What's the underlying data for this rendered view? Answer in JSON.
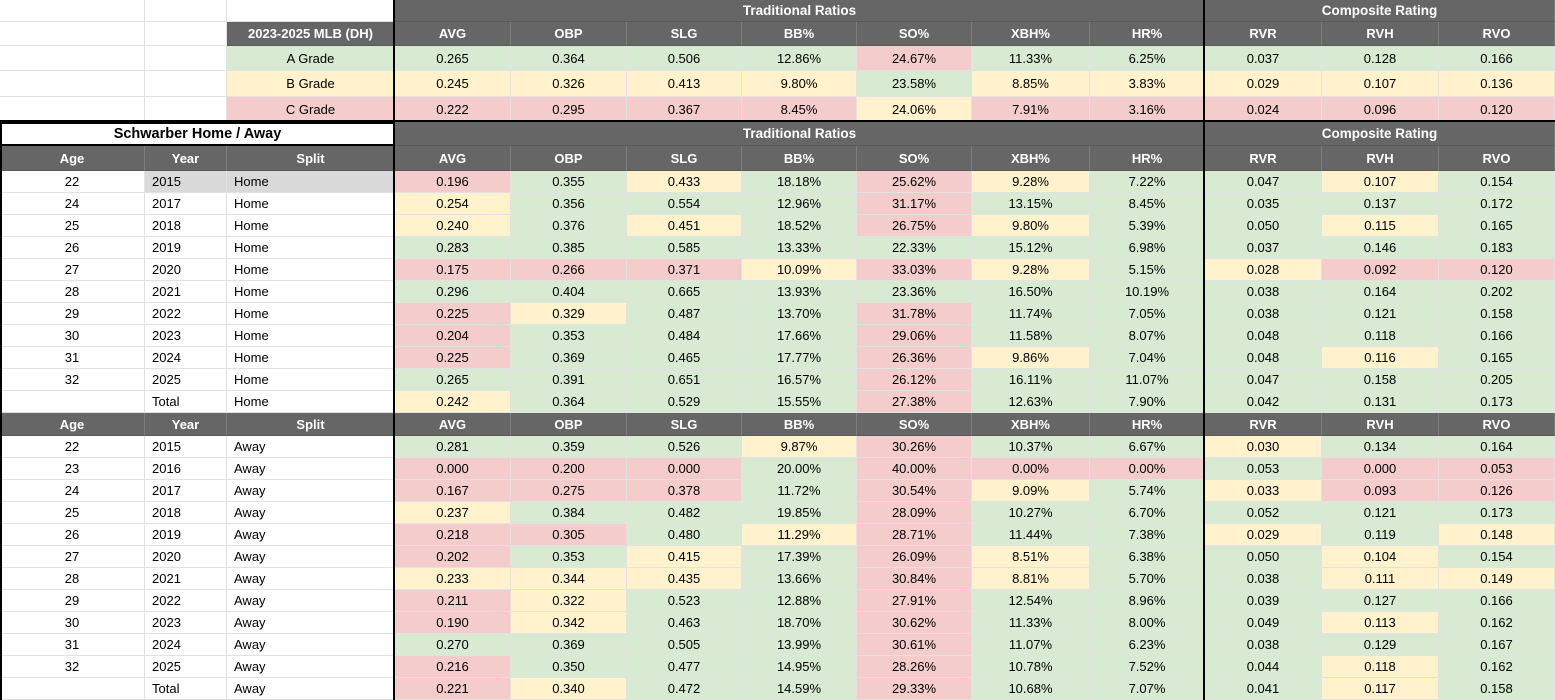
{
  "palette": {
    "G": "#d9ead3",
    "Y": "#fff2cc",
    "R": "#f4cccc",
    "S": "#d9d9d9",
    "header": "#666666"
  },
  "group_headers": {
    "traditional": "Traditional Ratios",
    "composite": "Composite Rating"
  },
  "stat_headers": [
    "AVG",
    "OBP",
    "SLG",
    "BB%",
    "SO%",
    "XBH%",
    "HR%",
    "RVR",
    "RVH",
    "RVO"
  ],
  "split_headers": [
    "Age",
    "Year",
    "Split"
  ],
  "top_table": {
    "label_header": "2023-2025 MLB (DH)",
    "rows": [
      {
        "label": "A Grade",
        "label_color": "G",
        "values": [
          "0.265",
          "0.364",
          "0.506",
          "12.86%",
          "24.67%",
          "11.33%",
          "6.25%",
          "0.037",
          "0.128",
          "0.166"
        ],
        "colors": [
          "G",
          "G",
          "G",
          "G",
          "R",
          "G",
          "G",
          "G",
          "G",
          "G"
        ]
      },
      {
        "label": "B Grade",
        "label_color": "Y",
        "values": [
          "0.245",
          "0.326",
          "0.413",
          "9.80%",
          "23.58%",
          "8.85%",
          "3.83%",
          "0.029",
          "0.107",
          "0.136"
        ],
        "colors": [
          "Y",
          "Y",
          "Y",
          "Y",
          "G",
          "Y",
          "Y",
          "Y",
          "Y",
          "Y"
        ]
      },
      {
        "label": "C Grade",
        "label_color": "R",
        "values": [
          "0.222",
          "0.295",
          "0.367",
          "8.45%",
          "24.06%",
          "7.91%",
          "3.16%",
          "0.024",
          "0.096",
          "0.120"
        ],
        "colors": [
          "R",
          "R",
          "R",
          "R",
          "Y",
          "R",
          "R",
          "R",
          "R",
          "R"
        ]
      }
    ]
  },
  "splits_table": {
    "title": "Schwarber Home / Away",
    "home_rows": [
      {
        "age": "22",
        "year": "2015",
        "split": "Home",
        "highlight": true,
        "values": [
          "0.196",
          "0.355",
          "0.433",
          "18.18%",
          "25.62%",
          "9.28%",
          "7.22%",
          "0.047",
          "0.107",
          "0.154"
        ],
        "colors": [
          "R",
          "G",
          "Y",
          "G",
          "R",
          "Y",
          "G",
          "G",
          "Y",
          "G"
        ]
      },
      {
        "age": "24",
        "year": "2017",
        "split": "Home",
        "highlight": false,
        "values": [
          "0.254",
          "0.356",
          "0.554",
          "12.96%",
          "31.17%",
          "13.15%",
          "8.45%",
          "0.035",
          "0.137",
          "0.172"
        ],
        "colors": [
          "Y",
          "G",
          "G",
          "G",
          "R",
          "G",
          "G",
          "G",
          "G",
          "G"
        ]
      },
      {
        "age": "25",
        "year": "2018",
        "split": "Home",
        "highlight": false,
        "values": [
          "0.240",
          "0.376",
          "0.451",
          "18.52%",
          "26.75%",
          "9.80%",
          "5.39%",
          "0.050",
          "0.115",
          "0.165"
        ],
        "colors": [
          "Y",
          "G",
          "Y",
          "G",
          "R",
          "Y",
          "G",
          "G",
          "Y",
          "G"
        ]
      },
      {
        "age": "26",
        "year": "2019",
        "split": "Home",
        "highlight": false,
        "values": [
          "0.283",
          "0.385",
          "0.585",
          "13.33%",
          "22.33%",
          "15.12%",
          "6.98%",
          "0.037",
          "0.146",
          "0.183"
        ],
        "colors": [
          "G",
          "G",
          "G",
          "G",
          "G",
          "G",
          "G",
          "G",
          "G",
          "G"
        ]
      },
      {
        "age": "27",
        "year": "2020",
        "split": "Home",
        "highlight": false,
        "values": [
          "0.175",
          "0.266",
          "0.371",
          "10.09%",
          "33.03%",
          "9.28%",
          "5.15%",
          "0.028",
          "0.092",
          "0.120"
        ],
        "colors": [
          "R",
          "R",
          "R",
          "Y",
          "R",
          "Y",
          "G",
          "Y",
          "R",
          "R"
        ]
      },
      {
        "age": "28",
        "year": "2021",
        "split": "Home",
        "highlight": false,
        "values": [
          "0.296",
          "0.404",
          "0.665",
          "13.93%",
          "23.36%",
          "16.50%",
          "10.19%",
          "0.038",
          "0.164",
          "0.202"
        ],
        "colors": [
          "G",
          "G",
          "G",
          "G",
          "G",
          "G",
          "G",
          "G",
          "G",
          "G"
        ]
      },
      {
        "age": "29",
        "year": "2022",
        "split": "Home",
        "highlight": false,
        "values": [
          "0.225",
          "0.329",
          "0.487",
          "13.70%",
          "31.78%",
          "11.74%",
          "7.05%",
          "0.038",
          "0.121",
          "0.158"
        ],
        "colors": [
          "R",
          "Y",
          "G",
          "G",
          "R",
          "G",
          "G",
          "G",
          "G",
          "G"
        ]
      },
      {
        "age": "30",
        "year": "2023",
        "split": "Home",
        "highlight": false,
        "values": [
          "0.204",
          "0.353",
          "0.484",
          "17.66%",
          "29.06%",
          "11.58%",
          "8.07%",
          "0.048",
          "0.118",
          "0.166"
        ],
        "colors": [
          "R",
          "G",
          "G",
          "G",
          "R",
          "G",
          "G",
          "G",
          "G",
          "G"
        ]
      },
      {
        "age": "31",
        "year": "2024",
        "split": "Home",
        "highlight": false,
        "values": [
          "0.225",
          "0.369",
          "0.465",
          "17.77%",
          "26.36%",
          "9.86%",
          "7.04%",
          "0.048",
          "0.116",
          "0.165"
        ],
        "colors": [
          "R",
          "G",
          "G",
          "G",
          "R",
          "Y",
          "G",
          "G",
          "Y",
          "G"
        ]
      },
      {
        "age": "32",
        "year": "2025",
        "split": "Home",
        "highlight": false,
        "values": [
          "0.265",
          "0.391",
          "0.651",
          "16.57%",
          "26.12%",
          "16.11%",
          "11.07%",
          "0.047",
          "0.158",
          "0.205"
        ],
        "colors": [
          "G",
          "G",
          "G",
          "G",
          "R",
          "G",
          "G",
          "G",
          "G",
          "G"
        ]
      },
      {
        "age": "",
        "year": "Total",
        "split": "Home",
        "highlight": false,
        "values": [
          "0.242",
          "0.364",
          "0.529",
          "15.55%",
          "27.38%",
          "12.63%",
          "7.90%",
          "0.042",
          "0.131",
          "0.173"
        ],
        "colors": [
          "Y",
          "G",
          "G",
          "G",
          "R",
          "G",
          "G",
          "G",
          "G",
          "G"
        ]
      }
    ],
    "away_rows": [
      {
        "age": "22",
        "year": "2015",
        "split": "Away",
        "highlight": false,
        "values": [
          "0.281",
          "0.359",
          "0.526",
          "9.87%",
          "30.26%",
          "10.37%",
          "6.67%",
          "0.030",
          "0.134",
          "0.164"
        ],
        "colors": [
          "G",
          "G",
          "G",
          "Y",
          "R",
          "G",
          "G",
          "Y",
          "G",
          "G"
        ]
      },
      {
        "age": "23",
        "year": "2016",
        "split": "Away",
        "highlight": false,
        "values": [
          "0.000",
          "0.200",
          "0.000",
          "20.00%",
          "40.00%",
          "0.00%",
          "0.00%",
          "0.053",
          "0.000",
          "0.053"
        ],
        "colors": [
          "R",
          "R",
          "R",
          "G",
          "R",
          "R",
          "R",
          "G",
          "R",
          "R"
        ]
      },
      {
        "age": "24",
        "year": "2017",
        "split": "Away",
        "highlight": false,
        "values": [
          "0.167",
          "0.275",
          "0.378",
          "11.72%",
          "30.54%",
          "9.09%",
          "5.74%",
          "0.033",
          "0.093",
          "0.126"
        ],
        "colors": [
          "R",
          "R",
          "R",
          "G",
          "R",
          "Y",
          "G",
          "Y",
          "R",
          "R"
        ]
      },
      {
        "age": "25",
        "year": "2018",
        "split": "Away",
        "highlight": false,
        "values": [
          "0.237",
          "0.384",
          "0.482",
          "19.85%",
          "28.09%",
          "10.27%",
          "6.70%",
          "0.052",
          "0.121",
          "0.173"
        ],
        "colors": [
          "Y",
          "G",
          "G",
          "G",
          "R",
          "G",
          "G",
          "G",
          "G",
          "G"
        ]
      },
      {
        "age": "26",
        "year": "2019",
        "split": "Away",
        "highlight": false,
        "values": [
          "0.218",
          "0.305",
          "0.480",
          "11.29%",
          "28.71%",
          "11.44%",
          "7.38%",
          "0.029",
          "0.119",
          "0.148"
        ],
        "colors": [
          "R",
          "R",
          "G",
          "Y",
          "R",
          "G",
          "G",
          "Y",
          "G",
          "Y"
        ]
      },
      {
        "age": "27",
        "year": "2020",
        "split": "Away",
        "highlight": false,
        "values": [
          "0.202",
          "0.353",
          "0.415",
          "17.39%",
          "26.09%",
          "8.51%",
          "6.38%",
          "0.050",
          "0.104",
          "0.154"
        ],
        "colors": [
          "R",
          "G",
          "Y",
          "G",
          "R",
          "Y",
          "G",
          "G",
          "Y",
          "G"
        ]
      },
      {
        "age": "28",
        "year": "2021",
        "split": "Away",
        "highlight": false,
        "values": [
          "0.233",
          "0.344",
          "0.435",
          "13.66%",
          "30.84%",
          "8.81%",
          "5.70%",
          "0.038",
          "0.111",
          "0.149"
        ],
        "colors": [
          "Y",
          "Y",
          "Y",
          "G",
          "R",
          "Y",
          "G",
          "G",
          "Y",
          "Y"
        ]
      },
      {
        "age": "29",
        "year": "2022",
        "split": "Away",
        "highlight": false,
        "values": [
          "0.211",
          "0.322",
          "0.523",
          "12.88%",
          "27.91%",
          "12.54%",
          "8.96%",
          "0.039",
          "0.127",
          "0.166"
        ],
        "colors": [
          "R",
          "Y",
          "G",
          "G",
          "R",
          "G",
          "G",
          "G",
          "G",
          "G"
        ]
      },
      {
        "age": "30",
        "year": "2023",
        "split": "Away",
        "highlight": false,
        "values": [
          "0.190",
          "0.342",
          "0.463",
          "18.70%",
          "30.62%",
          "11.33%",
          "8.00%",
          "0.049",
          "0.113",
          "0.162"
        ],
        "colors": [
          "R",
          "Y",
          "G",
          "G",
          "R",
          "G",
          "G",
          "G",
          "Y",
          "G"
        ]
      },
      {
        "age": "31",
        "year": "2024",
        "split": "Away",
        "highlight": false,
        "values": [
          "0.270",
          "0.369",
          "0.505",
          "13.99%",
          "30.61%",
          "11.07%",
          "6.23%",
          "0.038",
          "0.129",
          "0.167"
        ],
        "colors": [
          "G",
          "G",
          "G",
          "G",
          "R",
          "G",
          "G",
          "G",
          "G",
          "G"
        ]
      },
      {
        "age": "32",
        "year": "2025",
        "split": "Away",
        "highlight": false,
        "values": [
          "0.216",
          "0.350",
          "0.477",
          "14.95%",
          "28.26%",
          "10.78%",
          "7.52%",
          "0.044",
          "0.118",
          "0.162"
        ],
        "colors": [
          "R",
          "G",
          "G",
          "G",
          "R",
          "G",
          "G",
          "G",
          "Y",
          "G"
        ]
      },
      {
        "age": "",
        "year": "Total",
        "split": "Away",
        "highlight": false,
        "values": [
          "0.221",
          "0.340",
          "0.472",
          "14.59%",
          "29.33%",
          "10.68%",
          "7.07%",
          "0.041",
          "0.117",
          "0.158"
        ],
        "colors": [
          "R",
          "Y",
          "G",
          "G",
          "R",
          "G",
          "G",
          "G",
          "Y",
          "G"
        ]
      }
    ]
  }
}
